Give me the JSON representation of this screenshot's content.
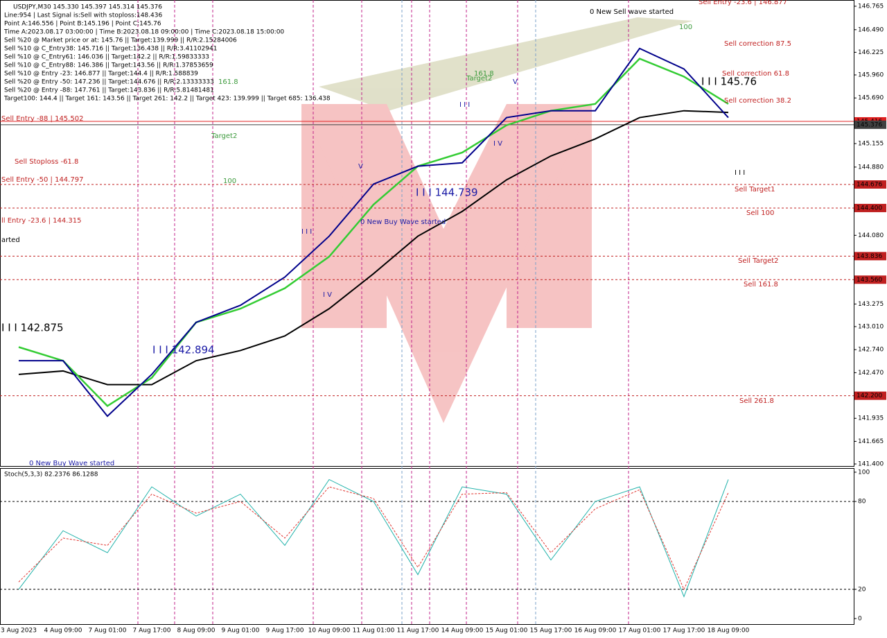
{
  "chart_data": [
    {
      "type": "line",
      "info_lines": [
        "USDJPY,M30  145.330 145.397 145.314 145.376",
        "Line:954 | Last Signal is:Sell with stoploss:148.436",
        "Point A:146.556 | Point B:145.196 | Point C:145.76",
        "Time A:2023.08.17 03:00:00 | Time B:2023.08.18 09:00:00 | Time C:2023.08.18 15:00:00",
        "Sell %20 @ Market price or at: 145.76 || Target:139.999 || R/R:2.15284006",
        "Sell %10 @ C_Entry38: 145.716 || Target:136.438 || R/R:3.41102941",
        "Sell %10 @ C_Entry61: 146.036 || Target:142.2 || R/R:1.59833333",
        "Sell %10 @ C_Entry88: 146.386 || Target:143.56 || R/R:1.37853659",
        "Sell %10 @ Entry -23: 146.877 || Target:144.4 || R/R:1.588839",
        "Sell %20 @ Entry -50: 147.236 || Target:144.676 || R/R:2.13333333",
        "Sell %20 @ Entry -88: 147.761 || Target:143.836 || R/R:5.81481481",
        "Target100: 144.4 || Target 161: 143.56 || Target 261: 142.2 || Target 423: 139.999 || Target 685: 136.438"
      ],
      "annotations": [
        {
          "text": "0 New Sell wave started",
          "color": "#000000"
        },
        {
          "text": "100",
          "color": "#3c9a3c"
        },
        {
          "text": "Sell Entry -23.6 | 146.877",
          "color": "#c02020"
        },
        {
          "text": "Sell correction 87.5",
          "color": "#c02020"
        },
        {
          "text": "Sell correction 61.8",
          "color": "#c02020"
        },
        {
          "text": "I I I 145.76",
          "color": "#000000"
        },
        {
          "text": "Sell correction 38.2",
          "color": "#c02020"
        },
        {
          "text": "161.8",
          "color": "#3c9a3c"
        },
        {
          "text": "Target2",
          "color": "#3c9a3c"
        },
        {
          "text": "161.8",
          "color": "#3c9a3c"
        },
        {
          "text": "Target2",
          "color": "#3c9a3c"
        },
        {
          "text": "Sell Entry -88 | 145.502",
          "color": "#c02020"
        },
        {
          "text": "Sell Stoploss -61.8",
          "color": "#c02020"
        },
        {
          "text": "Sell Entry -50 | 144.797",
          "color": "#c02020"
        },
        {
          "text": "100",
          "color": "#3c9a3c"
        },
        {
          "text": "ll Entry -23.6 | 144.315",
          "color": "#c02020"
        },
        {
          "text": "arted",
          "color": "#000000"
        },
        {
          "text": "0 New Buy Wave started",
          "color": "#1a1aa6"
        },
        {
          "text": "I I I 144.739",
          "color": "#1a1aa6"
        },
        {
          "text": "I I I 142.894",
          "color": "#1a1aa6"
        },
        {
          "text": "I I I 142.875",
          "color": "#000000"
        },
        {
          "text": "0 New Buy Wave started",
          "color": "#1a1aa6"
        },
        {
          "text": "Sell Target1",
          "color": "#c02020"
        },
        {
          "text": "Sell 100",
          "color": "#c02020"
        },
        {
          "text": "Sell Target2",
          "color": "#c02020"
        },
        {
          "text": "Sell 161.8",
          "color": "#c02020"
        },
        {
          "text": "Sell  261.8",
          "color": "#c02020"
        },
        {
          "text": "I I I",
          "color": "#1a1aa6"
        },
        {
          "text": "V",
          "color": "#1a1aa6"
        },
        {
          "text": "I V",
          "color": "#1a1aa6"
        },
        {
          "text": "I I I",
          "color": "#1a1aa6"
        },
        {
          "text": "I V",
          "color": "#1a1aa6"
        },
        {
          "text": "I I I",
          "color": "#000000"
        },
        {
          "text": "V",
          "color": "#1a1aa6"
        }
      ],
      "categories": [
        "3 Aug 2023",
        "4 Aug 09:00",
        "7 Aug 01:00",
        "7 Aug 17:00",
        "8 Aug 09:00",
        "9 Aug 01:00",
        "9 Aug 17:00",
        "10 Aug 09:00",
        "11 Aug 01:00",
        "11 Aug 17:00",
        "14 Aug 09:00",
        "15 Aug 01:00",
        "15 Aug 17:00",
        "16 Aug 09:00",
        "17 Aug 01:00",
        "17 Aug 17:00",
        "18 Aug 09:00"
      ],
      "series": [
        {
          "color": "#000000",
          "values": [
            142.45,
            142.49,
            142.33,
            142.33,
            142.61,
            142.73,
            142.9,
            143.22,
            143.63,
            144.07,
            144.36,
            144.73,
            145.01,
            145.21,
            145.46,
            145.54,
            145.52
          ]
        },
        {
          "color": "#33cc33",
          "values": [
            142.77,
            142.61,
            142.08,
            142.41,
            143.06,
            143.22,
            143.46,
            143.83,
            144.44,
            144.89,
            145.05,
            145.37,
            145.54,
            145.62,
            146.15,
            145.94,
            145.62
          ]
        },
        {
          "color": "#00008b",
          "values": [
            142.61,
            142.61,
            141.96,
            142.45,
            143.06,
            143.26,
            143.59,
            144.07,
            144.68,
            144.89,
            144.93,
            145.46,
            145.54,
            145.54,
            146.27,
            146.03,
            145.46
          ]
        }
      ],
      "ylim": [
        141.376,
        146.838
      ],
      "yticks": [
        146.765,
        {
          "value": 146.49,
          "label": "146.490"
        },
        146.225,
        {
          "value": 145.96,
          "label": "145.960"
        },
        {
          "value": 145.69,
          "label": "145.690"
        },
        145.155,
        {
          "value": 144.88,
          "label": "144.880"
        },
        {
          "value": 144.08,
          "label": "144.080"
        },
        143.275,
        {
          "value": 143.01,
          "label": "143.010"
        },
        {
          "value": 142.74,
          "label": "142.740"
        },
        {
          "value": 142.47,
          "label": "142.470"
        },
        141.935,
        141.665,
        {
          "value": 141.4,
          "label": "141.400"
        }
      ],
      "levels": [
        {
          "value": 145.416,
          "label": "145.416",
          "color": "#e02020"
        },
        {
          "value": 145.376,
          "label": "145.376",
          "color": "#404040"
        },
        {
          "value": 144.676,
          "label": "144.676",
          "color": "#c02020"
        },
        {
          "value": 144.4,
          "label": "144.400",
          "color": "#c02020"
        },
        {
          "value": 143.836,
          "label": "143.836",
          "color": "#c02020"
        },
        {
          "value": 143.56,
          "label": "143.560",
          "color": "#c02020"
        },
        {
          "value": 142.2,
          "label": "142.200",
          "color": "#c02020"
        }
      ]
    },
    {
      "type": "line",
      "title": "Stoch(5,3,3) 82.2376 86.1288",
      "series": [
        {
          "color": "#20b2aa",
          "values": [
            20,
            60,
            45,
            90,
            70,
            85,
            50,
            95,
            80,
            30,
            90,
            85,
            40,
            80,
            90,
            15,
            95
          ]
        },
        {
          "color": "#e0342f",
          "values": [
            25,
            55,
            50,
            85,
            72,
            80,
            55,
            90,
            82,
            35,
            85,
            86,
            45,
            75,
            88,
            20,
            86
          ]
        }
      ],
      "ylim": [
        -3.8,
        102.8
      ],
      "yticks": [
        100,
        80,
        20,
        0
      ],
      "levels": [
        80,
        20
      ]
    }
  ]
}
